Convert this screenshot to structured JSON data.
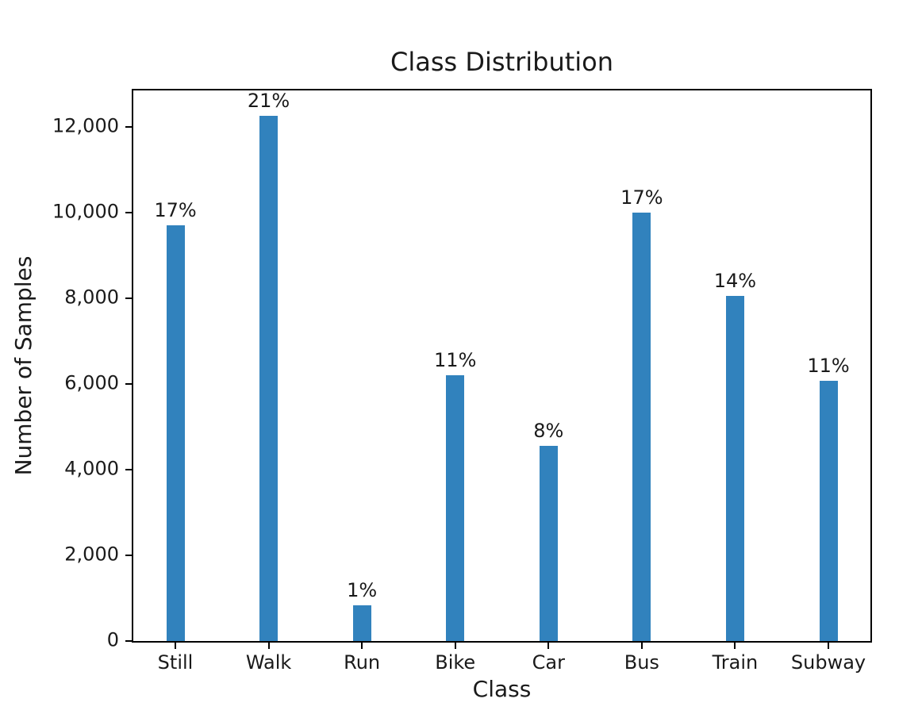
{
  "chart_data": {
    "type": "bar",
    "title": "Class Distribution",
    "xlabel": "Class",
    "ylabel": "Number of Samples",
    "categories": [
      "Still",
      "Walk",
      "Run",
      "Bike",
      "Car",
      "Bus",
      "Train",
      "Subway"
    ],
    "values": [
      9700,
      12250,
      830,
      6200,
      4550,
      10000,
      8050,
      6070
    ],
    "bar_labels": [
      "17%",
      "21%",
      "1%",
      "11%",
      "8%",
      "17%",
      "14%",
      "11%"
    ],
    "yticks": {
      "values": [
        0,
        2000,
        4000,
        6000,
        8000,
        10000,
        12000
      ],
      "labels": [
        "0",
        "2,000",
        "4,000",
        "6,000",
        "8,000",
        "10,000",
        "12,000"
      ]
    },
    "ylim": [
      0,
      12850
    ],
    "bar_color": "#3182bd",
    "grid": false,
    "legend_position": "none"
  }
}
